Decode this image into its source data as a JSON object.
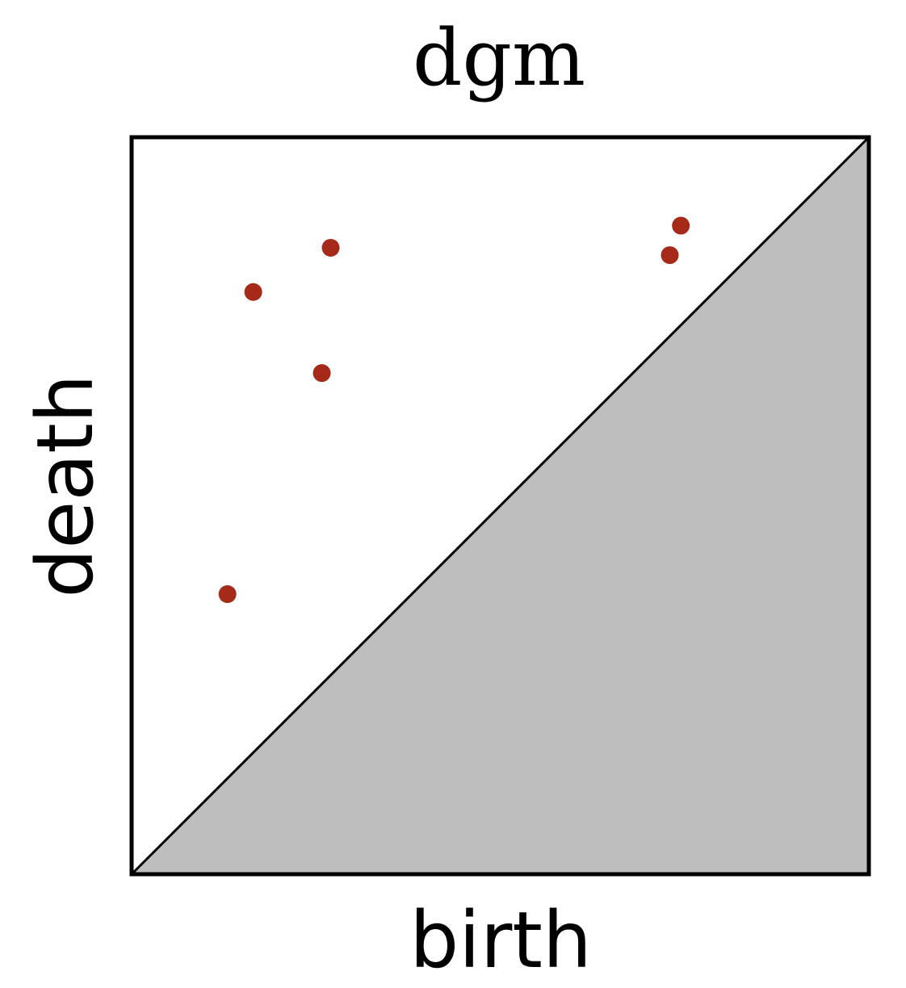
{
  "chart_data": {
    "type": "scatter",
    "title": "dgm",
    "xlabel": "birth",
    "ylabel": "death",
    "xlim": [
      0,
      1
    ],
    "ylim": [
      0,
      1
    ],
    "diagonal": true,
    "shade_below_diagonal": true,
    "grid": false,
    "legend": "none",
    "series": [
      {
        "points": [
          {
            "x": 0.13,
            "y": 0.38
          },
          {
            "x": 0.165,
            "y": 0.79
          },
          {
            "x": 0.27,
            "y": 0.85
          },
          {
            "x": 0.258,
            "y": 0.68
          },
          {
            "x": 0.73,
            "y": 0.84
          },
          {
            "x": 0.745,
            "y": 0.88
          }
        ]
      }
    ]
  },
  "colors": {
    "point": "#a52a1a",
    "shade": "#bebebe",
    "frame": "#000000",
    "background": "#ffffff"
  }
}
